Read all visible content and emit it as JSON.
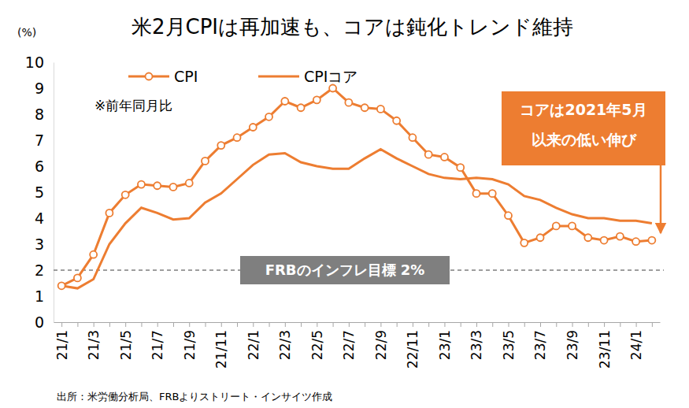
{
  "chart_data": {
    "type": "line",
    "title": "米2月CPIは再加速も、コアは鈍化トレンド維持",
    "y_label": "(%)",
    "note": "※前年同月比",
    "source": "出所：米労働分析局、FRBよりストリート・インサイツ作成",
    "callout": [
      "コアは2021年5月",
      "以来の低い伸び"
    ],
    "target_line": {
      "label": "FRBのインフレ目標 2%",
      "value": 2
    },
    "categories": [
      "21/1",
      null,
      "21/3",
      null,
      "21/5",
      null,
      "21/7",
      null,
      "21/9",
      null,
      "21/11",
      null,
      "22/1",
      null,
      "22/3",
      null,
      "22/5",
      null,
      "22/7",
      null,
      "22/9",
      null,
      "22/11",
      null,
      "23/1",
      null,
      "23/3",
      null,
      "23/5",
      null,
      "23/7",
      null,
      "23/9",
      null,
      "23/11",
      null,
      "24/1",
      null
    ],
    "series": [
      {
        "name": "CPI",
        "color": "#ed7d31",
        "marker": "circle",
        "line_style": "solid",
        "values": [
          1.4,
          1.7,
          2.6,
          4.2,
          4.9,
          5.3,
          5.25,
          5.2,
          5.35,
          6.2,
          6.8,
          7.1,
          7.5,
          7.9,
          8.5,
          8.25,
          8.55,
          9.0,
          8.45,
          8.25,
          8.2,
          7.75,
          7.1,
          6.45,
          6.35,
          5.95,
          4.95,
          4.95,
          4.1,
          3.05,
          3.25,
          3.7,
          3.7,
          3.25,
          3.15,
          3.3,
          3.1,
          3.15
        ]
      },
      {
        "name": "CPIコア",
        "color": "#ed7d31",
        "marker": "none",
        "line_style": "solid",
        "values": [
          1.4,
          1.3,
          1.65,
          3.0,
          3.8,
          4.4,
          4.2,
          3.95,
          4.0,
          4.6,
          4.95,
          5.5,
          6.05,
          6.45,
          6.5,
          6.15,
          6.0,
          5.9,
          5.9,
          6.3,
          6.65,
          6.3,
          6.0,
          5.7,
          5.55,
          5.5,
          5.55,
          5.5,
          5.3,
          4.85,
          4.7,
          4.4,
          4.15,
          4.0,
          4.0,
          3.9,
          3.9,
          3.8
        ]
      }
    ],
    "ylim": [
      0,
      10
    ],
    "yticks": [
      0,
      1,
      2,
      3,
      4,
      5,
      6,
      7,
      8,
      9,
      10
    ],
    "grid": false,
    "legend": "top"
  }
}
